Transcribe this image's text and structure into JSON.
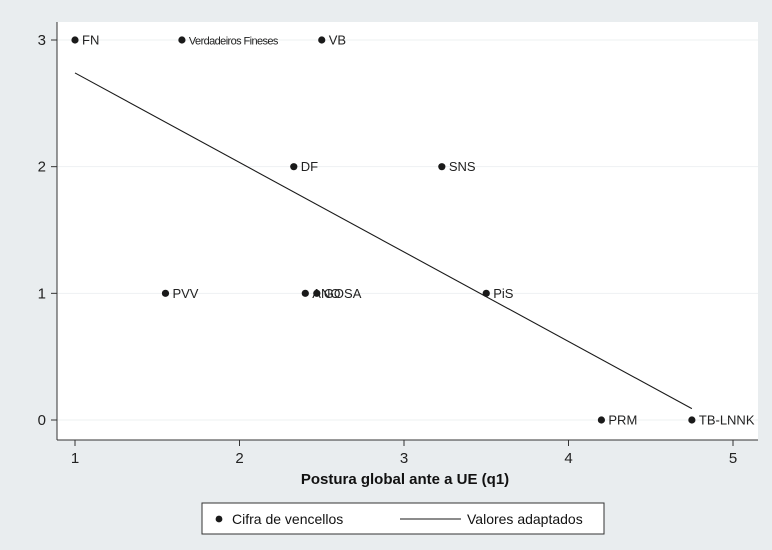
{
  "chart_data": {
    "type": "scatter",
    "xlabel": "Postura global ante a UE (q1)",
    "ylabel": "",
    "xlim": [
      1,
      5
    ],
    "ylim": [
      0,
      3
    ],
    "xticks": [
      1,
      2,
      3,
      4,
      5
    ],
    "yticks": [
      0,
      1,
      2,
      3
    ],
    "grid": true,
    "legend_placement": "bottom",
    "series": [
      {
        "name": "Cifra de vencellos",
        "kind": "points",
        "points": [
          {
            "x": 1.0,
            "y": 3,
            "label": "FN"
          },
          {
            "x": 1.65,
            "y": 3,
            "label": "Verdadeiros Fineses"
          },
          {
            "x": 2.5,
            "y": 3,
            "label": "VB"
          },
          {
            "x": 2.33,
            "y": 2,
            "label": "DF"
          },
          {
            "x": 3.23,
            "y": 2,
            "label": "SNS"
          },
          {
            "x": 1.55,
            "y": 1,
            "label": "PVV"
          },
          {
            "x": 2.4,
            "y": 1,
            "label": "ANO"
          },
          {
            "x": 2.47,
            "y": 1,
            "label": "GOSA"
          },
          {
            "x": 3.5,
            "y": 1,
            "label": "PiS"
          },
          {
            "x": 4.2,
            "y": 0,
            "label": "PRM"
          },
          {
            "x": 4.75,
            "y": 0,
            "label": "TB-LNNK"
          }
        ]
      },
      {
        "name": "Valores adaptados",
        "kind": "line",
        "points": [
          {
            "x": 1.0,
            "y": 2.74
          },
          {
            "x": 4.75,
            "y": 0.09
          }
        ]
      }
    ]
  },
  "colors": {
    "background": "#e9edef",
    "plot_area": "#ffffff",
    "grid": "#eef1f2",
    "marker": "#1a1a1a",
    "line": "#1a1a1a",
    "axis": "#333333"
  }
}
